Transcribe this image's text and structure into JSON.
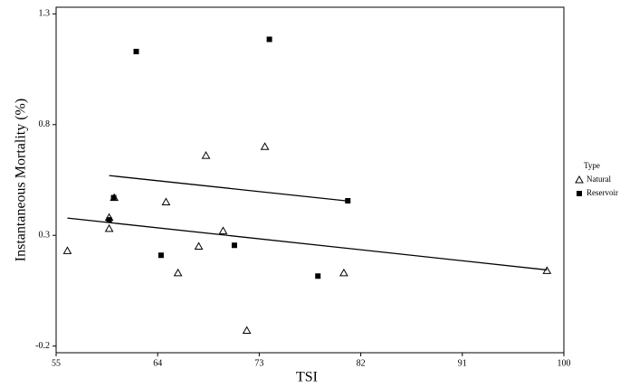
{
  "chart_data": {
    "type": "scatter",
    "x_label": "TSI",
    "y_label": "Instantaneous Mortality (%)",
    "xlim": [
      55,
      100
    ],
    "ylim": [
      -0.23,
      1.33
    ],
    "xticks": [
      55,
      64,
      73,
      82,
      91,
      100
    ],
    "yticks": [
      -0.2,
      0.3,
      0.8,
      1.3
    ],
    "legend_title": "Type",
    "legend_position": "right",
    "series": [
      {
        "name": "Natural",
        "marker": "triangle",
        "color": "#000000",
        "x": [
          56.0,
          59.7,
          59.7,
          60.15,
          64.74,
          68.28,
          73.5,
          65.8,
          67.64,
          69.8,
          71.9,
          80.5,
          98.5
        ],
        "values": [
          0.23,
          0.38,
          0.33,
          0.47,
          0.45,
          0.66,
          0.7,
          0.13,
          0.25,
          0.32,
          -0.13,
          0.13,
          0.14
        ],
        "fit_x": [
          56.0,
          98.5
        ],
        "fit_y": [
          0.378,
          0.144
        ]
      },
      {
        "name": "Reservoir",
        "marker": "square",
        "color": "#000000",
        "x": [
          62.1,
          73.9,
          59.7,
          60.1,
          64.3,
          70.8,
          78.2,
          80.85
        ],
        "values": [
          1.13,
          1.185,
          0.37,
          0.47,
          0.21,
          0.255,
          0.116,
          0.456
        ],
        "fit_x": [
          59.7,
          80.85
        ],
        "fit_y": [
          0.57,
          0.455
        ]
      }
    ]
  }
}
